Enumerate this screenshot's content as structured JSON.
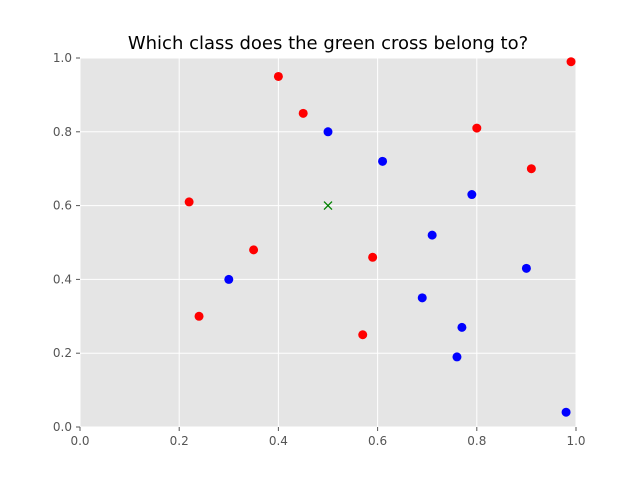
{
  "chart_data": {
    "type": "scatter",
    "title": "Which class does the green cross belong to?",
    "xlabel": "",
    "ylabel": "",
    "xlim": [
      0,
      1
    ],
    "ylim": [
      0,
      1
    ],
    "xticks": [
      "0.0",
      "0.2",
      "0.4",
      "0.6",
      "0.8",
      "1.0"
    ],
    "yticks": [
      "0.0",
      "0.2",
      "0.4",
      "0.6",
      "0.8",
      "1.0"
    ],
    "grid": true,
    "legend": "none",
    "colors": {
      "plot_background": "#e5e5e5",
      "grid": "#ffffff",
      "class_red": "#ff0000",
      "class_blue": "#0000ff",
      "query": "#008000"
    },
    "series": [
      {
        "class": "red",
        "marker": "circle",
        "x": [
          0.22,
          0.24,
          0.35,
          0.4,
          0.45,
          0.57,
          0.59,
          0.8,
          0.91,
          0.99
        ],
        "y": [
          0.61,
          0.3,
          0.48,
          0.95,
          0.85,
          0.25,
          0.46,
          0.81,
          0.7,
          0.99
        ]
      },
      {
        "class": "blue",
        "marker": "circle",
        "x": [
          0.3,
          0.5,
          0.61,
          0.69,
          0.71,
          0.76,
          0.77,
          0.79,
          0.9,
          0.98
        ],
        "y": [
          0.4,
          0.8,
          0.72,
          0.35,
          0.52,
          0.19,
          0.27,
          0.63,
          0.43,
          0.04
        ]
      },
      {
        "class": "query",
        "marker": "x",
        "x": [
          0.5
        ],
        "y": [
          0.6
        ]
      }
    ]
  }
}
